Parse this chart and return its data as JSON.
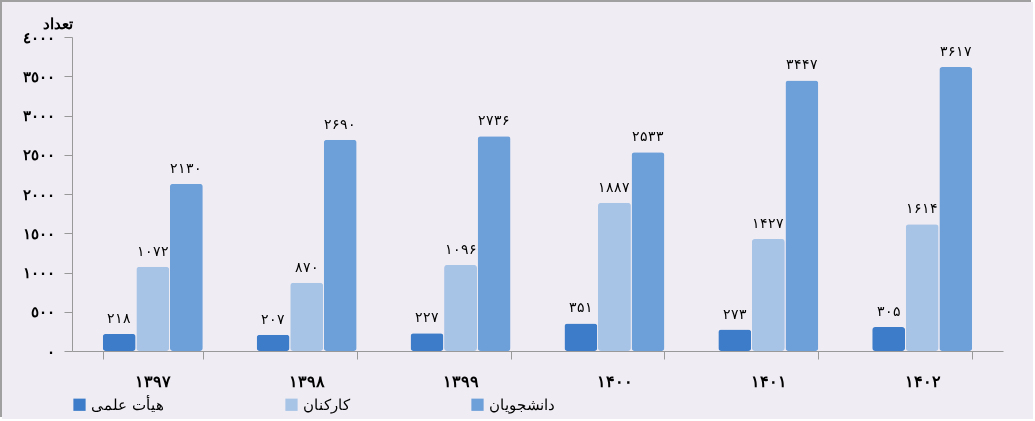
{
  "chart_data": {
    "type": "bar",
    "ylabel": "تعداد",
    "categories": [
      "۱۳۹۷",
      "۱۳۹۸",
      "۱۳۹۹",
      "۱۴۰۰",
      "۱۴۰۱",
      "۱۴۰۲"
    ],
    "series": [
      {
        "name": "هیأت علمی",
        "color": "#3d7cc9",
        "values": [
          218,
          207,
          227,
          351,
          273,
          305
        ],
        "value_labels": [
          "۲۱۸",
          "۲۰۷",
          "۲۲۷",
          "۳۵۱",
          "۲۷۳",
          "۳۰۵"
        ]
      },
      {
        "name": "کارکنان",
        "color": "#a7c3e6",
        "values": [
          1072,
          870,
          1096,
          1887,
          1427,
          1614
        ],
        "value_labels": [
          "۱۰۷۲",
          "۸۷۰",
          "۱۰۹۶",
          "۱۸۸۷",
          "۱۴۲۷",
          "۱۶۱۴"
        ]
      },
      {
        "name": "دانشجویان",
        "color": "#6d9fd9",
        "values": [
          2130,
          2690,
          2736,
          2533,
          3447,
          3617
        ],
        "value_labels": [
          "۲۱۳۰",
          "۲۶۹۰",
          "۲۷۳۶",
          "۲۵۳۳",
          "۳۴۴۷",
          "۳۶۱۷"
        ]
      }
    ],
    "ylim": [
      0,
      4000
    ],
    "yticks": [
      {
        "value": 0,
        "label": "٠"
      },
      {
        "value": 500,
        "label": "٥٠٠"
      },
      {
        "value": 1000,
        "label": "١٠٠٠"
      },
      {
        "value": 1500,
        "label": "١٥٠٠"
      },
      {
        "value": 2000,
        "label": "٢٠٠٠"
      },
      {
        "value": 2500,
        "label": "٢٥٠٠"
      },
      {
        "value": 3000,
        "label": "٣٠٠٠"
      },
      {
        "value": 3500,
        "label": "٣٥٠٠"
      },
      {
        "value": 4000,
        "label": "٤٠٠٠"
      }
    ],
    "grid": false,
    "legend": "bottom"
  }
}
